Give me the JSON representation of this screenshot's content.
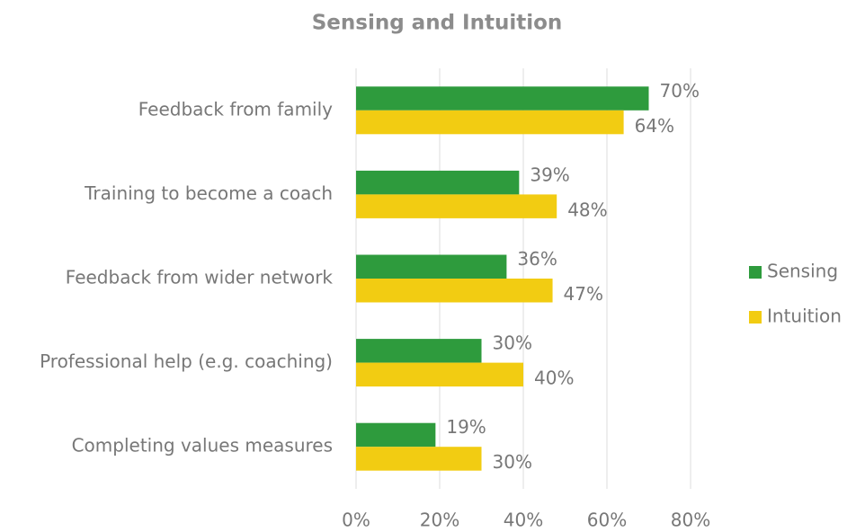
{
  "chart_data": {
    "type": "bar",
    "orientation": "horizontal",
    "title": "Sensing and Intuition",
    "categories": [
      "Feedback from family",
      "Training to become a coach",
      "Feedback from wider network",
      "Professional help (e.g. coaching)",
      "Completing values measures"
    ],
    "series": [
      {
        "name": "Sensing",
        "color": "#2e9b3d",
        "values": [
          70,
          39,
          36,
          30,
          19
        ],
        "value_labels": [
          "70%",
          "39%",
          "36%",
          "30%",
          "19%"
        ]
      },
      {
        "name": "Intuition",
        "color": "#f2cc12",
        "values": [
          64,
          48,
          47,
          40,
          30
        ],
        "value_labels": [
          "64%",
          "48%",
          "47%",
          "40%",
          "30%"
        ]
      }
    ],
    "xlim": [
      0,
      80
    ],
    "xticks": [
      {
        "value": 0,
        "label": "0%"
      },
      {
        "value": 20,
        "label": "20%"
      },
      {
        "value": 40,
        "label": "40%"
      },
      {
        "value": 60,
        "label": "60%"
      },
      {
        "value": 80,
        "label": "80%"
      }
    ],
    "grid": true,
    "legend": "right"
  }
}
